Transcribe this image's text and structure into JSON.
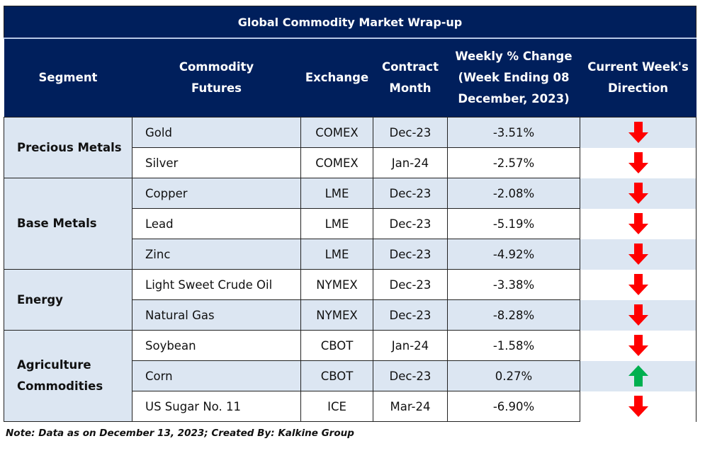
{
  "table": {
    "title": "Global Commodity Market Wrap-up",
    "headers": [
      "Segment",
      "Commodity Futures",
      "Exchange",
      "Contract Month",
      "Weekly % Change (Week Ending 08 December, 2023)",
      "Current Week's Direction"
    ],
    "header_lines": {
      "segment": [
        "Segment"
      ],
      "commodity": [
        "Commodity",
        "Futures"
      ],
      "exchange": [
        "Exchange"
      ],
      "contract": [
        "Contract",
        "Month"
      ],
      "weekly": [
        "Weekly % Change",
        "(Week Ending 08",
        "December, 2023)"
      ],
      "direction": [
        "Current Week's",
        "Direction"
      ]
    },
    "segments": [
      {
        "label_lines": [
          "Precious Metals"
        ],
        "rows": [
          {
            "commodity": "Gold",
            "exchange": "COMEX",
            "contract": "Dec-23",
            "change": "-3.51%",
            "direction": "down"
          },
          {
            "commodity": "Silver",
            "exchange": "COMEX",
            "contract": "Jan-24",
            "change": "-2.57%",
            "direction": "down"
          }
        ]
      },
      {
        "label_lines": [
          "Base Metals"
        ],
        "rows": [
          {
            "commodity": "Copper",
            "exchange": "LME",
            "contract": "Dec-23",
            "change": "-2.08%",
            "direction": "down"
          },
          {
            "commodity": "Lead",
            "exchange": "LME",
            "contract": "Dec-23",
            "change": "-5.19%",
            "direction": "down"
          },
          {
            "commodity": "Zinc",
            "exchange": "LME",
            "contract": "Dec-23",
            "change": "-4.92%",
            "direction": "down"
          }
        ]
      },
      {
        "label_lines": [
          "Energy"
        ],
        "rows": [
          {
            "commodity": "Light Sweet Crude Oil",
            "exchange": "NYMEX",
            "contract": "Dec-23",
            "change": "-3.38%",
            "direction": "down"
          },
          {
            "commodity": "Natural Gas",
            "exchange": "NYMEX",
            "contract": "Dec-23",
            "change": "-8.28%",
            "direction": "down"
          }
        ]
      },
      {
        "label_lines": [
          "Agriculture",
          "Commodities"
        ],
        "rows": [
          {
            "commodity": "Soybean",
            "exchange": "CBOT",
            "contract": "Jan-24",
            "change": "-1.58%",
            "direction": "down"
          },
          {
            "commodity": "Corn",
            "exchange": "CBOT",
            "contract": "Dec-23",
            "change": "0.27%",
            "direction": "up"
          },
          {
            "commodity": "US Sugar No. 11",
            "exchange": "ICE",
            "contract": "Mar-24",
            "change": "-6.90%",
            "direction": "down"
          }
        ]
      }
    ],
    "row_shading": [
      true,
      false,
      true,
      false,
      true,
      false,
      true,
      false,
      true,
      false
    ],
    "colors": {
      "header_bg": "#001f5c",
      "shade_bg": "#dce6f2",
      "down_arrow": "#ff0000",
      "up_arrow": "#00b050"
    }
  },
  "footer": {
    "note": "Note: Data as on December 13, 2023; Created By: Kalkine Group"
  }
}
